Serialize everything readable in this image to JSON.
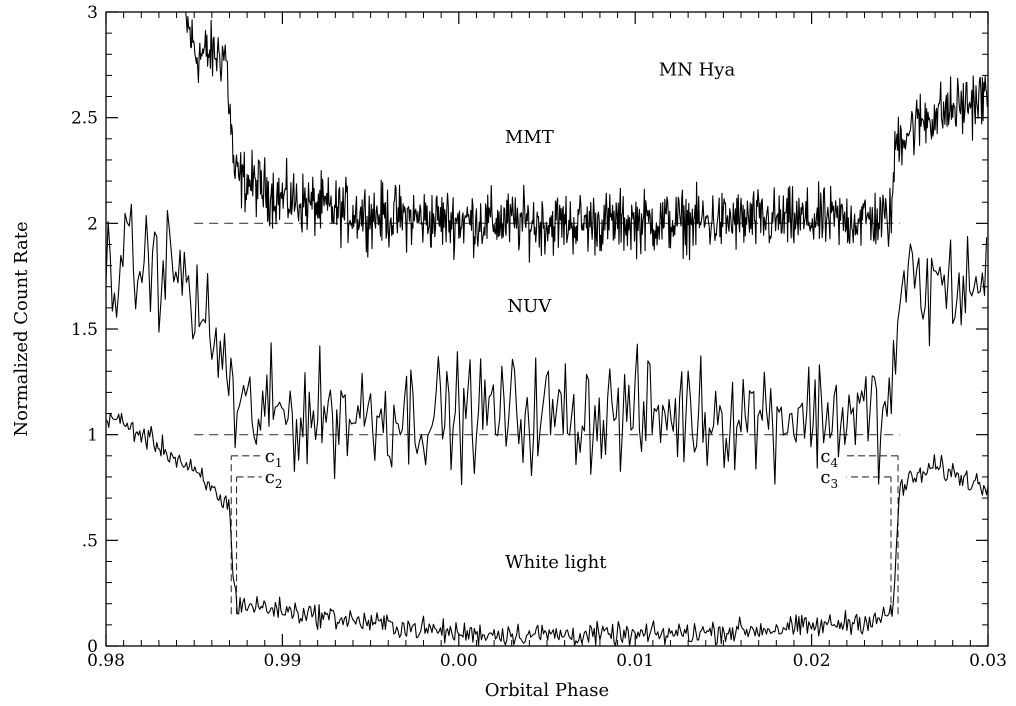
{
  "chart_data": {
    "type": "line",
    "xlabel": "Orbital Phase",
    "ylabel": "Normalized Count Rate",
    "xlim": [
      0.98,
      1.03
    ],
    "ylim": [
      0,
      3
    ],
    "x_ticks": [
      {
        "value": 0.98,
        "label": "0.98"
      },
      {
        "value": 0.99,
        "label": "0.99"
      },
      {
        "value": 1.0,
        "label": "0.00"
      },
      {
        "value": 1.01,
        "label": "0.01"
      },
      {
        "value": 1.02,
        "label": "0.02"
      },
      {
        "value": 1.03,
        "label": "0.03"
      }
    ],
    "y_ticks": [
      {
        "value": 0,
        "label": "0"
      },
      {
        "value": 0.5,
        "label": ".5"
      },
      {
        "value": 1,
        "label": "1"
      },
      {
        "value": 1.5,
        "label": "1.5"
      },
      {
        "value": 2,
        "label": "2"
      },
      {
        "value": 2.5,
        "label": "2.5"
      },
      {
        "value": 3,
        "label": "3"
      }
    ],
    "grid": false,
    "legend": "none",
    "annotations": [
      {
        "id": "title",
        "text": "MN Hya",
        "x": 1.0135,
        "y": 2.7
      },
      {
        "id": "mmt",
        "text": "MMT",
        "x": 1.004,
        "y": 2.38
      },
      {
        "id": "nuv",
        "text": "NUV",
        "x": 1.004,
        "y": 1.58
      },
      {
        "id": "white",
        "text": "White light",
        "x": 1.0055,
        "y": 0.37
      }
    ],
    "contacts": [
      {
        "id": "c1",
        "base": "c",
        "sub": "1",
        "x": 0.9871,
        "y": 0.9,
        "label_x": 0.989,
        "label_side": "right"
      },
      {
        "id": "c2",
        "base": "c",
        "sub": "2",
        "x": 0.9874,
        "y": 0.8,
        "label_x": 0.989,
        "label_side": "right"
      },
      {
        "id": "c3",
        "base": "c",
        "sub": "3",
        "x": 1.0245,
        "y": 0.8,
        "label_x": 1.0205,
        "label_side": "left"
      },
      {
        "id": "c4",
        "base": "c",
        "sub": "4",
        "x": 1.0249,
        "y": 0.9,
        "label_x": 1.0205,
        "label_side": "left"
      }
    ],
    "reference_lines": [
      {
        "name": "mmt-baseline",
        "y": 2.0,
        "x_from": 0.985,
        "x_to": 1.025
      },
      {
        "name": "nuv-baseline",
        "y": 1.0,
        "x_from": 0.985,
        "x_to": 1.025
      }
    ],
    "series": [
      {
        "id": "mmt",
        "noise": 0.12,
        "step": 4e-05,
        "points": [
          [
            0.9844,
            3.0
          ],
          [
            0.9851,
            2.8
          ],
          [
            0.9868,
            2.8
          ],
          [
            0.987,
            2.55
          ],
          [
            0.9873,
            2.22
          ],
          [
            0.988,
            2.2
          ],
          [
            0.99,
            2.12
          ],
          [
            0.993,
            2.06
          ],
          [
            0.998,
            2.02
          ],
          [
            1.005,
            2.0
          ],
          [
            1.015,
            2.01
          ],
          [
            1.0245,
            2.02
          ],
          [
            1.0248,
            2.4
          ],
          [
            1.0265,
            2.5
          ],
          [
            1.03,
            2.6
          ]
        ]
      },
      {
        "id": "nuv",
        "noise": 0.22,
        "step": 0.00012,
        "points": [
          [
            0.98,
            1.8
          ],
          [
            0.984,
            1.8
          ],
          [
            0.986,
            1.45
          ],
          [
            0.987,
            1.3
          ],
          [
            0.9873,
            1.1
          ],
          [
            0.99,
            1.1
          ],
          [
            1.0,
            1.1
          ],
          [
            1.015,
            1.1
          ],
          [
            1.0245,
            1.1
          ],
          [
            1.025,
            1.7
          ],
          [
            1.028,
            1.7
          ],
          [
            1.03,
            1.7
          ]
        ]
      },
      {
        "id": "white",
        "noise": 0.045,
        "step": 8e-05,
        "points": [
          [
            0.98,
            1.1
          ],
          [
            0.981,
            1.05
          ],
          [
            0.983,
            0.95
          ],
          [
            0.985,
            0.82
          ],
          [
            0.9865,
            0.7
          ],
          [
            0.987,
            0.66
          ],
          [
            0.9872,
            0.35
          ],
          [
            0.9874,
            0.2
          ],
          [
            0.99,
            0.17
          ],
          [
            0.995,
            0.11
          ],
          [
            1.0,
            0.06
          ],
          [
            1.01,
            0.05
          ],
          [
            1.02,
            0.09
          ],
          [
            1.024,
            0.13
          ],
          [
            1.0246,
            0.16
          ],
          [
            1.025,
            0.75
          ],
          [
            1.027,
            0.85
          ],
          [
            1.03,
            0.75
          ]
        ]
      }
    ]
  }
}
